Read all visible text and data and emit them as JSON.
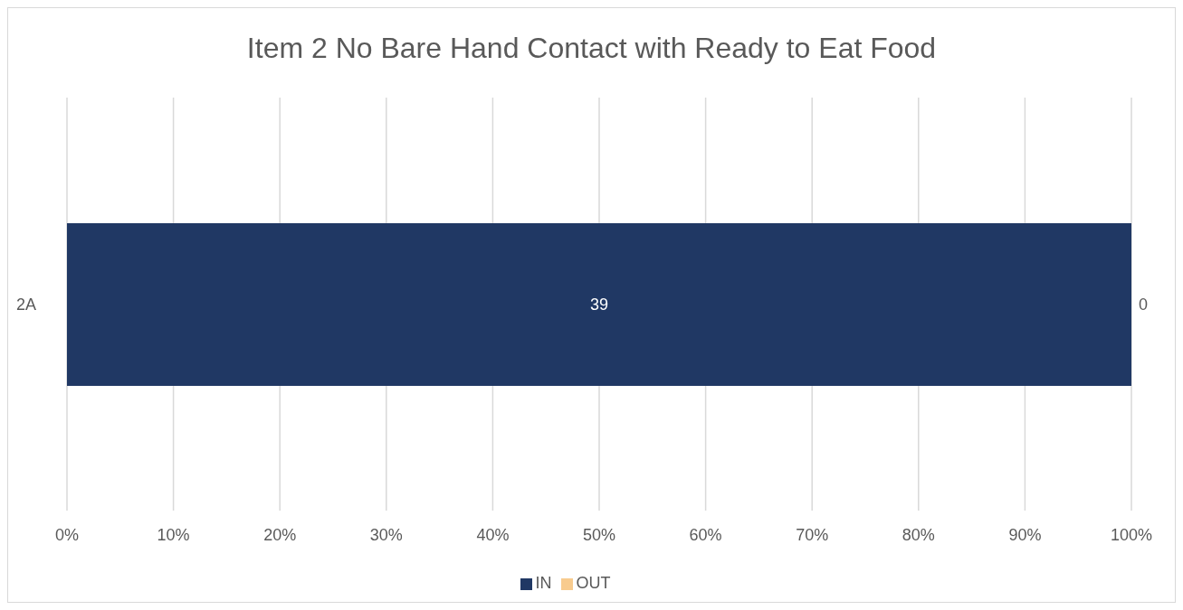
{
  "chart_data": {
    "type": "bar",
    "orientation": "horizontal",
    "stacked": true,
    "title": "Item 2 No Bare Hand Contact with Ready to Eat Food",
    "categories": [
      "2A"
    ],
    "series": [
      {
        "name": "IN",
        "color": "#203864",
        "values": [
          100
        ]
      },
      {
        "name": "OUT",
        "color": "#f8cb8e",
        "values": [
          0
        ]
      }
    ],
    "annotations": [
      "39",
      {
        "text": "0",
        "x": 100,
        "y": "2A"
      }
    ],
    "xlim": [
      0,
      100
    ],
    "xticks": [
      {
        "value": 0,
        "label": "0%"
      },
      {
        "value": 10,
        "label": "10%"
      },
      {
        "value": 20,
        "label": "20%"
      },
      {
        "value": 30,
        "label": "30%"
      },
      {
        "value": 40,
        "label": "40%"
      },
      {
        "value": 50,
        "label": "50%"
      },
      {
        "value": 60,
        "label": "60%"
      },
      {
        "value": 70,
        "label": "70%"
      },
      {
        "value": 80,
        "label": "80%"
      },
      {
        "value": 90,
        "label": "90%"
      },
      {
        "value": 100,
        "label": "100%"
      }
    ],
    "grid": "x",
    "legend": "bottom"
  }
}
